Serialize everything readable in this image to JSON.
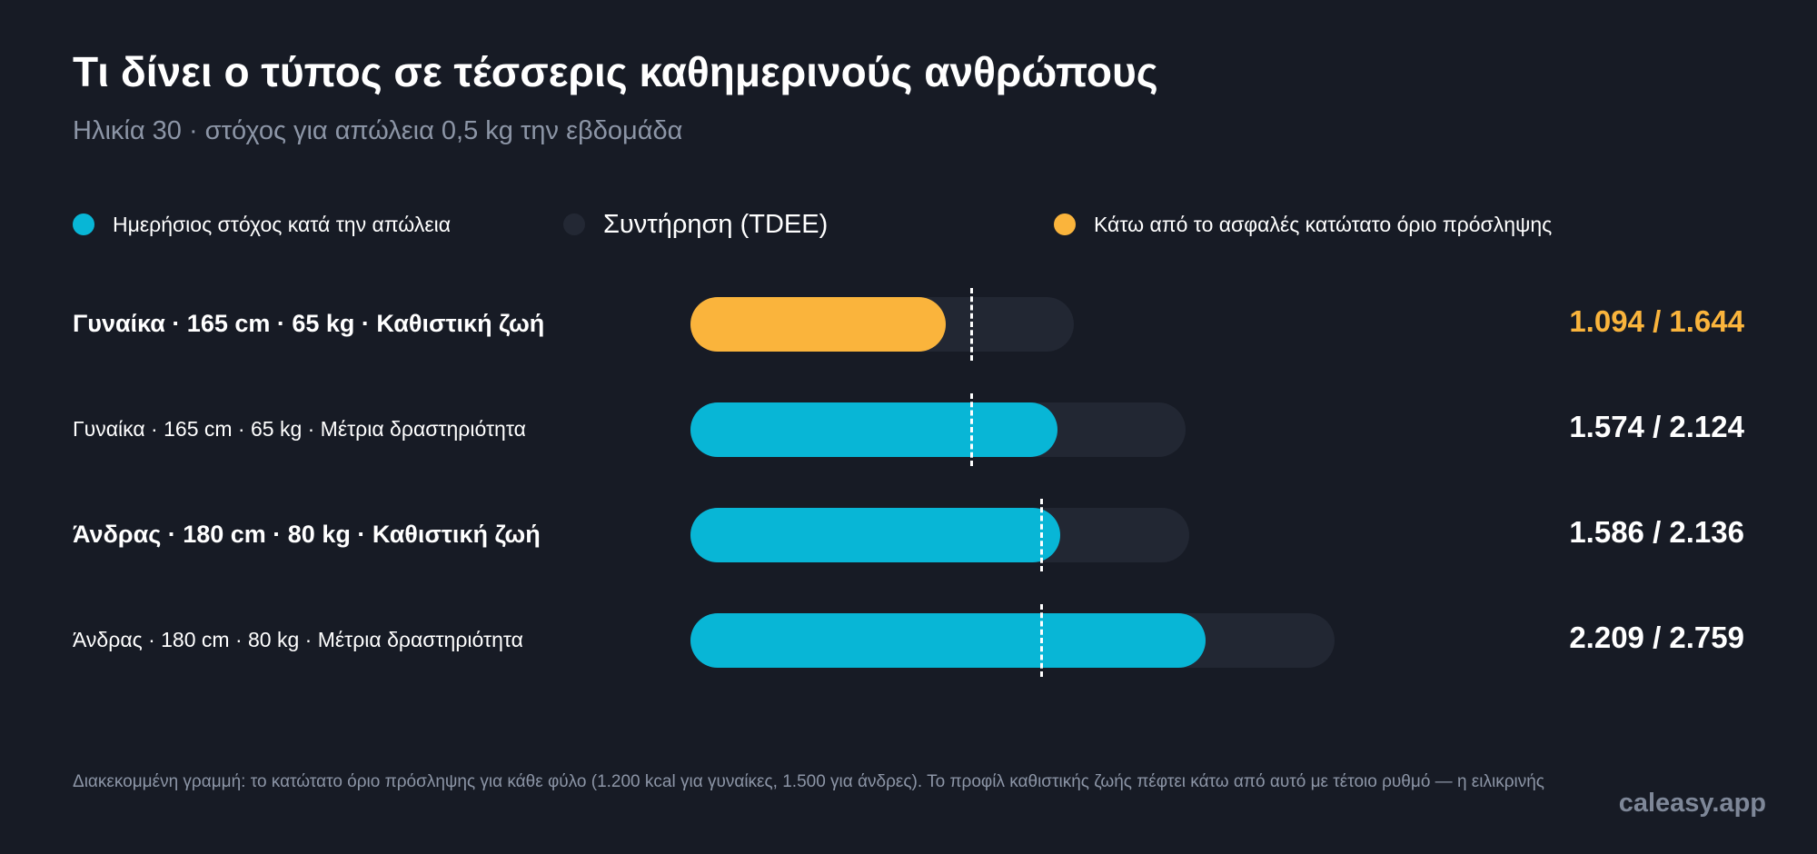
{
  "header": {
    "title": "Τι δίνει ο τύπος σε τέσσερις καθημερινούς ανθρώπους",
    "subtitle": "Ηλικία 30 · στόχος για απώλεια 0,5 kg την εβδομάδα"
  },
  "legend": [
    {
      "label": "Ημερήσιος στόχος κατά την απώλεια",
      "color": "#08b6d6",
      "icon": "cyan-dot"
    },
    {
      "label": "Συντήρηση (TDEE)",
      "color": "#232834",
      "icon": "dark-dot"
    },
    {
      "label": "Κάτω από το ασφαλές κατώτατο όριο πρόσληψης",
      "color": "#fab43c",
      "icon": "amber-dot"
    }
  ],
  "chart_data": {
    "type": "bar",
    "orientation": "horizontal",
    "title": "Τι δίνει ο τύπος σε τέσσερις καθημερινούς ανθρώπους",
    "subtitle": "Ηλικία 30 · στόχος για απώλεια 0,5 kg την εβδομάδα",
    "xlim": [
      0,
      3050
    ],
    "categories": [
      "Γυναίκα · 165 cm · 65 kg · Καθιστική ζωή",
      "Γυναίκα · 165 cm · 65 kg · Μέτρια δραστηριότητα",
      "Άνδρας · 180 cm · 80 kg · Καθιστική ζωή",
      "Άνδρας · 180 cm · 80 kg · Μέτρια δραστηριότητα"
    ],
    "series": [
      {
        "name": "Ημερήσιος στόχος κατά την απώλεια",
        "values": [
          1094,
          1574,
          1586,
          2209
        ]
      },
      {
        "name": "Συντήρηση (TDEE)",
        "values": [
          1644,
          2124,
          2136,
          2759
        ]
      }
    ],
    "floor": [
      1200,
      1200,
      1500,
      1500
    ],
    "below_floor": [
      true,
      false,
      false,
      false
    ],
    "value_labels": [
      "1.094 / 1.644",
      "1.574 / 2.124",
      "1.586 / 2.136",
      "2.209 / 2.759"
    ],
    "colors": {
      "target": "#08b6d6",
      "maintenance": "#222733",
      "below_floor": "#fab43c",
      "floor_line": "#ffffff"
    }
  },
  "footnote": "Διακεκομμένη γραμμή: το κατώτατο όριο πρόσληψης για κάθε φύλο (1.200 kcal για γυναίκες, 1.500 για άνδρες). Το προφίλ καθιστικής ζωής πέφτει κάτω από αυτό με τέτοιο ρυθμό — η ειλικρινής",
  "brand": "caleasy.app"
}
